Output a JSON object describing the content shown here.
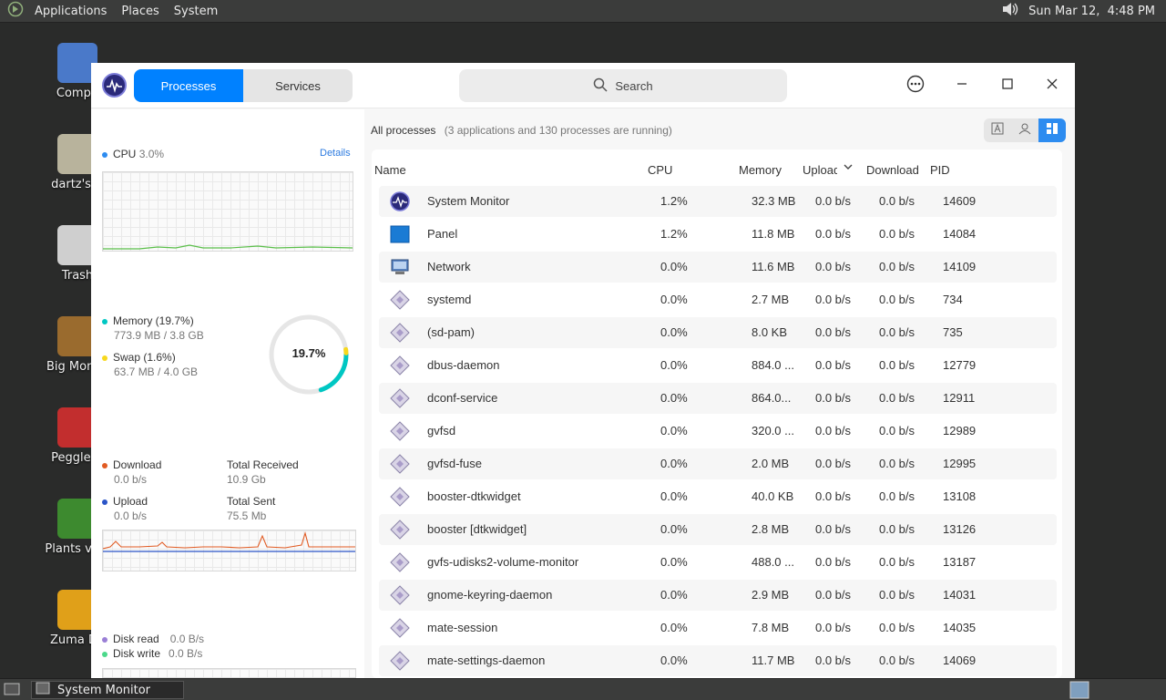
{
  "topbar": {
    "menus": [
      "Applications",
      "Places",
      "System"
    ],
    "clock": "Sun Mar 12,  4:48 PM"
  },
  "desktop": {
    "icons": [
      {
        "label": "Compu",
        "icon": "computer-icon",
        "color": "#4a79c9"
      },
      {
        "label": "dartz's H",
        "icon": "home-folder-icon",
        "color": "#b8b39c"
      },
      {
        "label": "Trash",
        "icon": "trash-icon",
        "color": "#cfcfcf"
      },
      {
        "label": "Big Money",
        "icon": "money-bag-icon",
        "color": "#9a6b2e"
      },
      {
        "label": "Peggle D",
        "icon": "peggle-icon",
        "color": "#c22e2e"
      },
      {
        "label": "Plants vs Z",
        "icon": "plants-vs-zombies-icon",
        "color": "#3d8a2f"
      },
      {
        "label": "Zuma De",
        "icon": "zuma-icon",
        "color": "#e0a019"
      }
    ]
  },
  "taskbar": {
    "window_label": "System Monitor"
  },
  "window": {
    "tabs": {
      "processes": "Processes",
      "services": "Services"
    },
    "search_placeholder": "Search",
    "left": {
      "cpu": {
        "label": "CPU",
        "value": "3.0%",
        "details": "Details"
      },
      "memory": {
        "label": "Memory (19.7%)",
        "detail": "773.9 MB / 3.8 GB",
        "ring_text": "19.7%",
        "fraction": 0.197
      },
      "swap": {
        "label": "Swap (1.6%)",
        "detail": "63.7 MB / 4.0 GB",
        "fraction": 0.016
      },
      "network": {
        "download_label": "Download",
        "download_value": "0.0 b/s",
        "upload_label": "Upload",
        "upload_value": "0.0 b/s",
        "total_received_label": "Total Received",
        "total_received": "10.9 Gb",
        "total_sent_label": "Total Sent",
        "total_sent": "75.5 Mb"
      },
      "disk": {
        "read_label": "Disk read",
        "read_value": "0.0 B/s",
        "write_label": "Disk write",
        "write_value": "0.0 B/s"
      }
    },
    "main": {
      "header_title": "All processes",
      "header_sub": "(3 applications and 130 processes are running)",
      "columns": [
        "Name",
        "CPU",
        "Memory",
        "Upload",
        "Download",
        "PID"
      ],
      "rows": [
        {
          "name": "System Monitor",
          "cpu": "1.2%",
          "mem": "32.3 MB",
          "up": "0.0 b/s",
          "down": "0.0 b/s",
          "pid": "14609",
          "icon": "system-monitor-icon"
        },
        {
          "name": "Panel",
          "cpu": "1.2%",
          "mem": "11.8 MB",
          "up": "0.0 b/s",
          "down": "0.0 b/s",
          "pid": "14084",
          "icon": "panel-icon"
        },
        {
          "name": "Network",
          "cpu": "0.0%",
          "mem": "11.6 MB",
          "up": "0.0 b/s",
          "down": "0.0 b/s",
          "pid": "14109",
          "icon": "network-icon"
        },
        {
          "name": "systemd",
          "cpu": "0.0%",
          "mem": "2.7 MB",
          "up": "0.0 b/s",
          "down": "0.0 b/s",
          "pid": "734",
          "icon": "process-icon"
        },
        {
          "name": "(sd-pam)",
          "cpu": "0.0%",
          "mem": "8.0 KB",
          "up": "0.0 b/s",
          "down": "0.0 b/s",
          "pid": "735",
          "icon": "process-icon"
        },
        {
          "name": "dbus-daemon",
          "cpu": "0.0%",
          "mem": "884.0 ...",
          "up": "0.0 b/s",
          "down": "0.0 b/s",
          "pid": "12779",
          "icon": "process-icon"
        },
        {
          "name": "dconf-service",
          "cpu": "0.0%",
          "mem": "864.0...",
          "up": "0.0 b/s",
          "down": "0.0 b/s",
          "pid": "12911",
          "icon": "process-icon"
        },
        {
          "name": "gvfsd",
          "cpu": "0.0%",
          "mem": "320.0 ...",
          "up": "0.0 b/s",
          "down": "0.0 b/s",
          "pid": "12989",
          "icon": "process-icon"
        },
        {
          "name": "gvfsd-fuse",
          "cpu": "0.0%",
          "mem": "2.0 MB",
          "up": "0.0 b/s",
          "down": "0.0 b/s",
          "pid": "12995",
          "icon": "process-icon"
        },
        {
          "name": "booster-dtkwidget",
          "cpu": "0.0%",
          "mem": "40.0 KB",
          "up": "0.0 b/s",
          "down": "0.0 b/s",
          "pid": "13108",
          "icon": "process-icon"
        },
        {
          "name": "booster [dtkwidget]",
          "cpu": "0.0%",
          "mem": "2.8 MB",
          "up": "0.0 b/s",
          "down": "0.0 b/s",
          "pid": "13126",
          "icon": "process-icon"
        },
        {
          "name": "gvfs-udisks2-volume-monitor",
          "cpu": "0.0%",
          "mem": "488.0 ...",
          "up": "0.0 b/s",
          "down": "0.0 b/s",
          "pid": "13187",
          "icon": "process-icon"
        },
        {
          "name": "gnome-keyring-daemon",
          "cpu": "0.0%",
          "mem": "2.9 MB",
          "up": "0.0 b/s",
          "down": "0.0 b/s",
          "pid": "14031",
          "icon": "process-icon"
        },
        {
          "name": "mate-session",
          "cpu": "0.0%",
          "mem": "7.8 MB",
          "up": "0.0 b/s",
          "down": "0.0 b/s",
          "pid": "14035",
          "icon": "process-icon"
        },
        {
          "name": "mate-settings-daemon",
          "cpu": "0.0%",
          "mem": "11.7 MB",
          "up": "0.0 b/s",
          "down": "0.0 b/s",
          "pid": "14069",
          "icon": "process-icon"
        }
      ]
    }
  },
  "colors": {
    "accent": "#0081ff",
    "cpu_dot": "#2d8cf0",
    "memory_dot": "#00c7c3",
    "swap_dot": "#f7d81e",
    "download_dot": "#e15b23",
    "upload_dot": "#2b55c7",
    "disk_read_dot": "#9a7fd6",
    "disk_write_dot": "#4cd98b"
  }
}
